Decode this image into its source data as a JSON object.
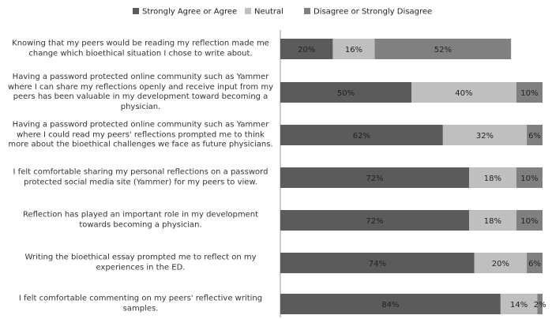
{
  "chart_data": {
    "type": "stacked-bar-horizontal",
    "categories": [
      "Knowing that my peers would be reading my reflection made me change which bioethical situation I chose to write about.",
      "Having a password protected online community such as Yammer where I can share my reflections openly and receive input from my peers has been valuable in my development toward becoming a physician.",
      "Having a password protected online community such as Yammer where I could read my peers' reflections prompted me to think more about the bioethical challenges we face as future physicians.",
      "I felt comfortable sharing my personal reflections on a password protected social media site (Yammer) for my peers to view.",
      "Reflection has played an important role in my development towards becoming a physician.",
      "Writing the bioethical essay prompted me to reflect on my experiences in the ED.",
      "I felt comfortable commenting on my peers' reflective writing samples."
    ],
    "series": [
      {
        "name": "Strongly Agree or Agree",
        "color": "#5b5b5b",
        "values": [
          20,
          50,
          62,
          72,
          72,
          74,
          84
        ],
        "value_labels": [
          "20%",
          "50%",
          "62%",
          "72%",
          "72%",
          "74%",
          "84%"
        ]
      },
      {
        "name": "Neutral",
        "color": "#bfbfbf",
        "values": [
          16,
          40,
          32,
          18,
          18,
          20,
          14
        ],
        "value_labels": [
          "16%",
          "40%",
          "32%",
          "18%",
          "18%",
          "20%",
          "14%"
        ]
      },
      {
        "name": "Disagree or Strongly Disagree",
        "color": "#808080",
        "values": [
          52,
          10,
          6,
          10,
          10,
          6,
          2
        ],
        "value_labels": [
          "52%",
          "10%",
          "6%",
          "10%",
          "10%",
          "6%",
          "2%"
        ]
      }
    ],
    "xlim": [
      0,
      100
    ],
    "legend": "top"
  }
}
